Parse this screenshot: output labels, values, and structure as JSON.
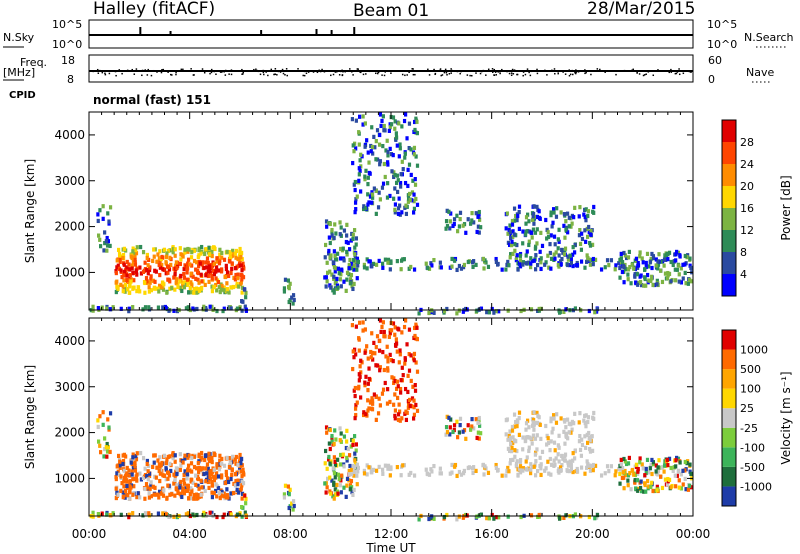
{
  "header": {
    "title": "Halley (fitACF)",
    "beam": "Beam 01",
    "date": "28/Mar/2015"
  },
  "panels": {
    "nsky_label": "N.Sky",
    "nsearch_label": "N.Search",
    "nsky_ticks": [
      "10^5",
      "10^0"
    ],
    "nsearch_ticks": [
      "10^5",
      "10^0"
    ],
    "freq_label": "Freq.",
    "freq_unit": "[MHz]",
    "freq_ticks": [
      "18",
      "8"
    ],
    "nave_label": "Nave",
    "nave_ticks": [
      "60",
      "0"
    ],
    "cpid_label": "CPID",
    "cpid_text": "normal (fast) 151"
  },
  "chart_data": [
    {
      "type": "heatmap",
      "name": "power",
      "ylabel": "Slant Range [km]",
      "colorbar_label": "Power [dB]",
      "ylim": [
        180,
        4500
      ],
      "y_ticks": [
        1000,
        2000,
        3000,
        4000
      ],
      "colorbar_ticks": [
        "28",
        "24",
        "20",
        "16",
        "12",
        "8",
        "4"
      ],
      "colors": [
        "#0000ff",
        "#2a4aa0",
        "#2e8b57",
        "#7cb342",
        "#ffd700",
        "#ff8c00",
        "#ff4500",
        "#e00000"
      ]
    },
    {
      "type": "heatmap",
      "name": "velocity",
      "ylabel": "Slant Range [km]",
      "colorbar_label": "Velocity [m s⁻¹]",
      "ylim": [
        180,
        4500
      ],
      "y_ticks": [
        1000,
        2000,
        3000,
        4000
      ],
      "colorbar_ticks": [
        "1000",
        "500",
        "100",
        "25",
        "-25",
        "-100",
        "-500",
        "-1000"
      ],
      "colors": [
        "#1e3ca8",
        "#1e6e3c",
        "#3cb45a",
        "#7ccd3c",
        "#c8c8c8",
        "#ffd700",
        "#ffa500",
        "#ff6a00",
        "#e00000"
      ]
    }
  ],
  "time_axis": {
    "xlabel": "Time UT",
    "ticks": [
      "00:00",
      "04:00",
      "08:00",
      "12:00",
      "16:00",
      "20:00",
      "00:00"
    ],
    "range_hours": [
      0,
      24
    ]
  }
}
